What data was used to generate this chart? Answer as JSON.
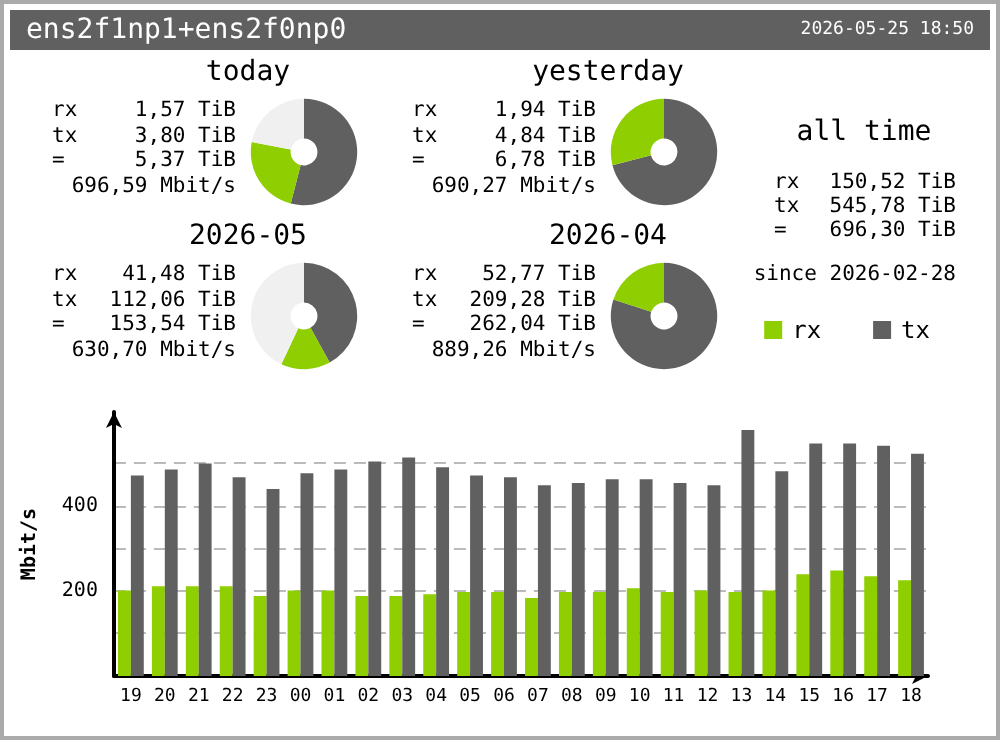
{
  "chart_data": [
    {
      "type": "other",
      "title": "ens2f1np1+ens2f0np0",
      "annotations": [
        "2026-05-25 18:50"
      ]
    },
    {
      "type": "donut",
      "title": "today",
      "categories": [
        null,
        null,
        null
      ],
      "values": [
        54,
        24,
        22
      ],
      "colors": [
        "#606060",
        "#8fce00",
        "#f0f0f0"
      ],
      "annotations": [
        "rx",
        "1,57 TiB",
        "tx",
        "3,80 TiB",
        "=",
        "5,37 TiB",
        "696,59 Mbit/s"
      ]
    },
    {
      "type": "donut",
      "title": "yesterday",
      "categories": [
        null,
        null
      ],
      "values": [
        71,
        29
      ],
      "colors": [
        "#606060",
        "#8fce00"
      ],
      "annotations": [
        "rx",
        "1,94 TiB",
        "tx",
        "4,84 TiB",
        "=",
        "6,78 TiB",
        "690,27 Mbit/s"
      ]
    },
    {
      "type": "other",
      "title": "all time",
      "annotations": [
        "rx",
        "150,52 TiB",
        "tx",
        "545,78 TiB",
        "=",
        "696,30 TiB",
        "since 2026-02-28"
      ]
    },
    {
      "type": "donut",
      "title": "2026-05",
      "categories": [
        null,
        null,
        null
      ],
      "values": [
        42,
        15,
        43
      ],
      "colors": [
        "#606060",
        "#8fce00",
        "#f0f0f0"
      ],
      "annotations": [
        "rx",
        "41,48 TiB",
        "tx",
        "112,06 TiB",
        "=",
        "153,54 TiB",
        "630,70 Mbit/s"
      ]
    },
    {
      "type": "donut",
      "title": "2026-04",
      "categories": [
        null,
        null
      ],
      "values": [
        80,
        20
      ],
      "colors": [
        "#606060",
        "#8fce00"
      ],
      "annotations": [
        "rx",
        "52,77 TiB",
        "tx",
        "209,28 TiB",
        "=",
        "262,04 TiB",
        "889,26 Mbit/s"
      ]
    },
    {
      "type": "bar",
      "ylabel": "Mbit/s",
      "categories": [
        "19",
        "20",
        "21",
        "22",
        "23",
        "00",
        "01",
        "02",
        "03",
        "04",
        "05",
        "06",
        "07",
        "08",
        "09",
        "10",
        "11",
        "12",
        "13",
        "14",
        "15",
        "16",
        "17",
        "18"
      ],
      "series": [
        {
          "name": "rx",
          "color": "#8fce00",
          "values": [
            201,
            211,
            211,
            211,
            188,
            201,
            201,
            188,
            188,
            192,
            197,
            197,
            183,
            197,
            197,
            206,
            197,
            201,
            197,
            201,
            239,
            248,
            234,
            225
          ]
        },
        {
          "name": "tx",
          "color": "#606060",
          "values": [
            471,
            485,
            499,
            467,
            439,
            476,
            485,
            504,
            513,
            490,
            471,
            467,
            448,
            453,
            462,
            462,
            453,
            448,
            578,
            481,
            546,
            546,
            541,
            522
          ]
        }
      ],
      "ylim": [
        0,
        620
      ],
      "yticks": [
        {
          "value": 100,
          "label": null
        },
        200,
        {
          "value": 300,
          "label": null
        },
        400,
        {
          "value": 500,
          "label": null
        }
      ],
      "grid": "y",
      "legend": "top right"
    }
  ]
}
